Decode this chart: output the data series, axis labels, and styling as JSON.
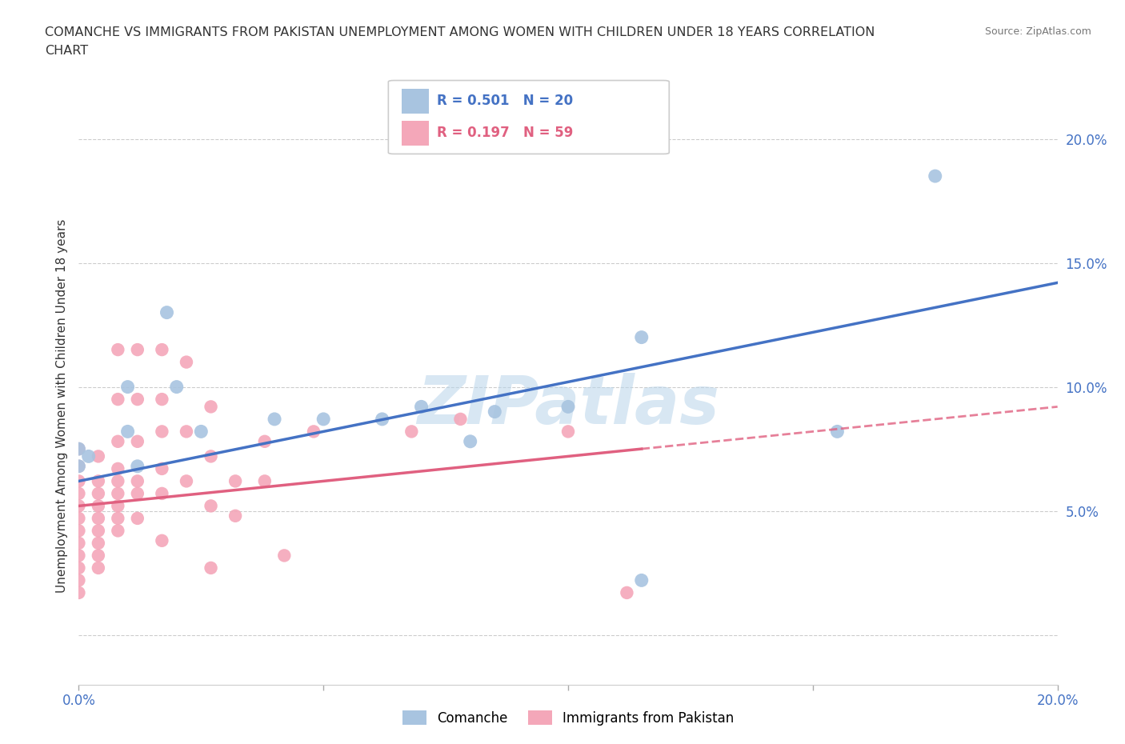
{
  "title_line1": "COMANCHE VS IMMIGRANTS FROM PAKISTAN UNEMPLOYMENT AMONG WOMEN WITH CHILDREN UNDER 18 YEARS CORRELATION",
  "title_line2": "CHART",
  "source": "Source: ZipAtlas.com",
  "ylabel": "Unemployment Among Women with Children Under 18 years",
  "xlim": [
    0.0,
    0.2
  ],
  "ylim": [
    -0.02,
    0.205
  ],
  "xticks": [
    0.0,
    0.05,
    0.1,
    0.15,
    0.2
  ],
  "yticks": [
    0.0,
    0.05,
    0.1,
    0.15,
    0.2
  ],
  "xticklabels": [
    "0.0%",
    "",
    "",
    "",
    "20.0%"
  ],
  "yticklabels": [
    "",
    "5.0%",
    "10.0%",
    "15.0%",
    "20.0%"
  ],
  "watermark": "ZIPatlas",
  "comanche_R": 0.501,
  "comanche_N": 20,
  "pakistan_R": 0.197,
  "pakistan_N": 59,
  "comanche_color": "#a8c4e0",
  "pakistan_color": "#f4a7b9",
  "comanche_line_color": "#4472c4",
  "pakistan_line_color": "#e06080",
  "legend_comanche": "Comanche",
  "legend_pakistan": "Immigrants from Pakistan",
  "comanche_scatter": [
    [
      0.0,
      0.075
    ],
    [
      0.0,
      0.068
    ],
    [
      0.002,
      0.072
    ],
    [
      0.01,
      0.1
    ],
    [
      0.01,
      0.082
    ],
    [
      0.012,
      0.068
    ],
    [
      0.018,
      0.13
    ],
    [
      0.02,
      0.1
    ],
    [
      0.025,
      0.082
    ],
    [
      0.04,
      0.087
    ],
    [
      0.05,
      0.087
    ],
    [
      0.062,
      0.087
    ],
    [
      0.07,
      0.092
    ],
    [
      0.08,
      0.078
    ],
    [
      0.085,
      0.09
    ],
    [
      0.1,
      0.092
    ],
    [
      0.115,
      0.12
    ],
    [
      0.155,
      0.082
    ],
    [
      0.175,
      0.185
    ],
    [
      0.115,
      0.022
    ]
  ],
  "pakistan_scatter": [
    [
      0.0,
      0.075
    ],
    [
      0.0,
      0.068
    ],
    [
      0.0,
      0.062
    ],
    [
      0.0,
      0.057
    ],
    [
      0.0,
      0.052
    ],
    [
      0.0,
      0.047
    ],
    [
      0.0,
      0.042
    ],
    [
      0.0,
      0.037
    ],
    [
      0.0,
      0.032
    ],
    [
      0.0,
      0.027
    ],
    [
      0.0,
      0.022
    ],
    [
      0.0,
      0.017
    ],
    [
      0.004,
      0.072
    ],
    [
      0.004,
      0.062
    ],
    [
      0.004,
      0.057
    ],
    [
      0.004,
      0.052
    ],
    [
      0.004,
      0.047
    ],
    [
      0.004,
      0.042
    ],
    [
      0.004,
      0.037
    ],
    [
      0.004,
      0.032
    ],
    [
      0.004,
      0.027
    ],
    [
      0.008,
      0.115
    ],
    [
      0.008,
      0.095
    ],
    [
      0.008,
      0.078
    ],
    [
      0.008,
      0.067
    ],
    [
      0.008,
      0.062
    ],
    [
      0.008,
      0.057
    ],
    [
      0.008,
      0.052
    ],
    [
      0.008,
      0.047
    ],
    [
      0.008,
      0.042
    ],
    [
      0.012,
      0.115
    ],
    [
      0.012,
      0.095
    ],
    [
      0.012,
      0.078
    ],
    [
      0.012,
      0.062
    ],
    [
      0.012,
      0.057
    ],
    [
      0.012,
      0.047
    ],
    [
      0.017,
      0.115
    ],
    [
      0.017,
      0.095
    ],
    [
      0.017,
      0.082
    ],
    [
      0.017,
      0.067
    ],
    [
      0.017,
      0.057
    ],
    [
      0.017,
      0.038
    ],
    [
      0.022,
      0.11
    ],
    [
      0.022,
      0.082
    ],
    [
      0.022,
      0.062
    ],
    [
      0.027,
      0.092
    ],
    [
      0.027,
      0.072
    ],
    [
      0.027,
      0.052
    ],
    [
      0.027,
      0.027
    ],
    [
      0.032,
      0.062
    ],
    [
      0.032,
      0.048
    ],
    [
      0.038,
      0.078
    ],
    [
      0.038,
      0.062
    ],
    [
      0.042,
      0.032
    ],
    [
      0.048,
      0.082
    ],
    [
      0.068,
      0.082
    ],
    [
      0.078,
      0.087
    ],
    [
      0.1,
      0.082
    ],
    [
      0.112,
      0.017
    ]
  ],
  "comanche_trend_x": [
    0.0,
    0.2
  ],
  "comanche_trend_y": [
    0.062,
    0.142
  ],
  "pakistan_trend_x": [
    0.0,
    0.2
  ],
  "pakistan_trend_y": [
    0.052,
    0.092
  ],
  "pakistan_trend_dashed_start": 0.115
}
